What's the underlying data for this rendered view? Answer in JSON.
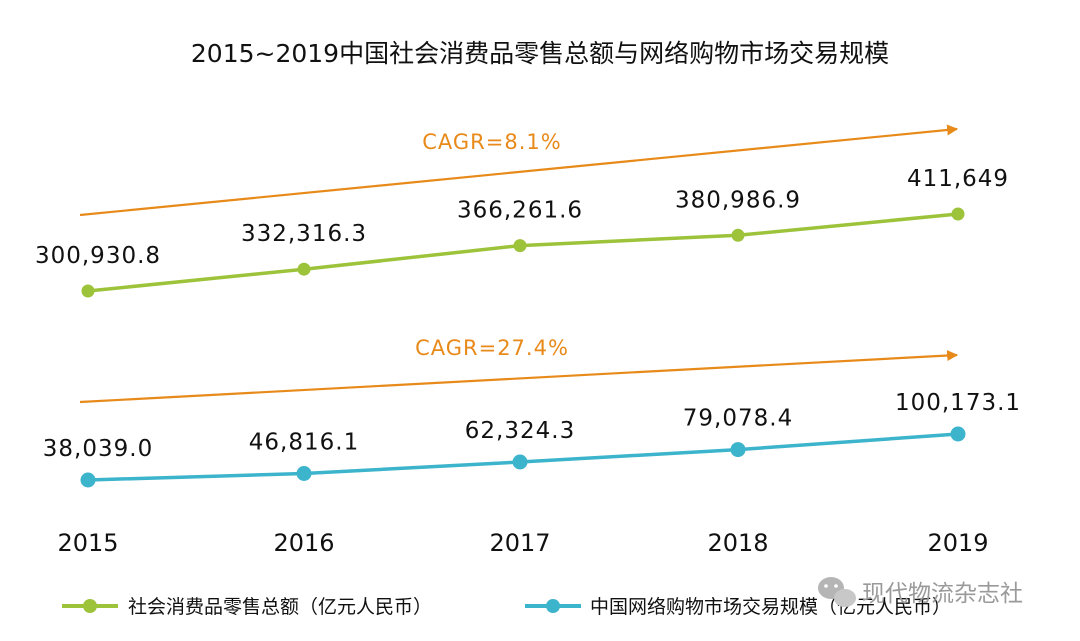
{
  "chart_data": {
    "type": "line",
    "title": "2015~2019中国社会消费品零售总额与网络购物市场交易规模",
    "categories": [
      "2015",
      "2016",
      "2017",
      "2018",
      "2019"
    ],
    "series": [
      {
        "name": "社会消费品零售总额（亿元人民币）",
        "color": "#9dc33b",
        "values": [
          300930.8,
          332316.3,
          366261.6,
          380986.9,
          411649
        ],
        "labels": [
          "300,930.8",
          "332,316.3",
          "366,261.6",
          "380,986.9",
          "411,649"
        ],
        "cagr": "CAGR=8.1%"
      },
      {
        "name": "中国网络购物市场交易规模（亿元人民币）",
        "color": "#3cb4cc",
        "values": [
          38039.0,
          46816.1,
          62324.3,
          79078.4,
          100173.1
        ],
        "labels": [
          "38,039.0",
          "46,816.1",
          "62,324.3",
          "79,078.4",
          "100,173.1"
        ],
        "cagr": "CAGR=27.4%"
      }
    ],
    "cagr_color": "#e88a1a",
    "grid": false,
    "legend_position": "bottom"
  },
  "watermark": "现代物流杂志社"
}
